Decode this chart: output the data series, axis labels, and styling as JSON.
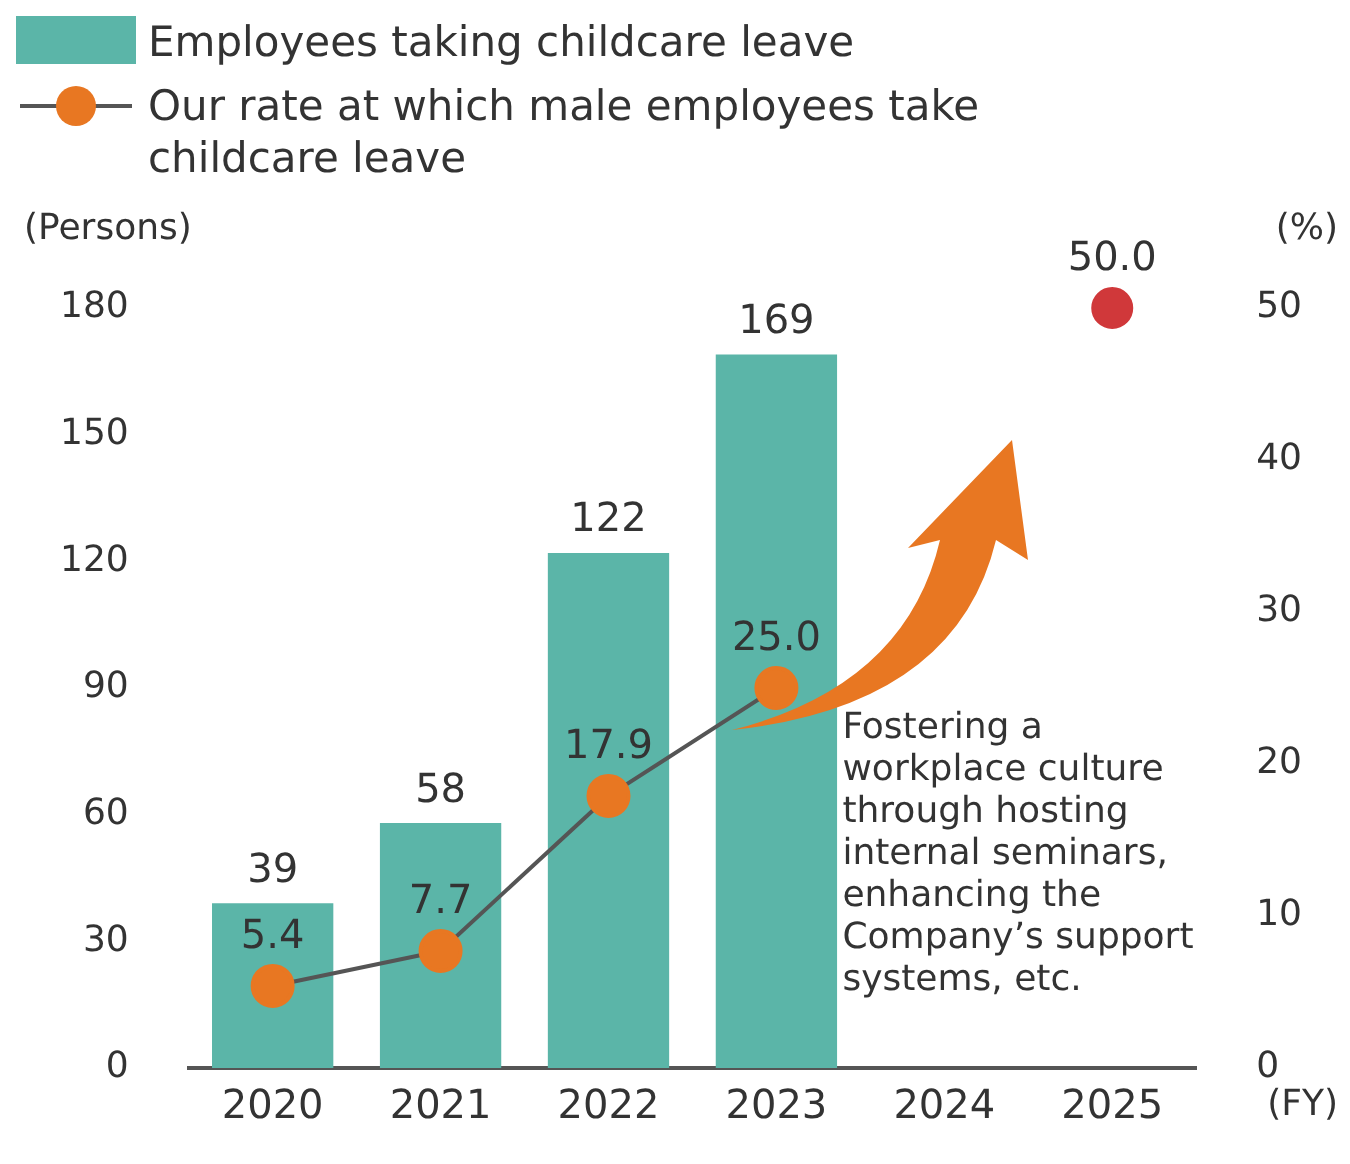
{
  "chart_data": {
    "type": "bar",
    "categories": [
      "2020",
      "2021",
      "2022",
      "2023",
      "2024",
      "2025"
    ],
    "series": [
      {
        "name": "Employees taking childcare leave",
        "color": "#5bb5a8",
        "values": [
          39,
          58,
          122,
          169,
          null,
          null
        ],
        "value_labels": [
          "39",
          "58",
          "122",
          "169",
          null,
          null
        ]
      },
      {
        "name": "Our rate at which male employees take childcare leave",
        "type": "line",
        "axis": "y2",
        "color": "#e87722",
        "marker": "circle",
        "values": [
          5.4,
          7.7,
          17.9,
          25.0,
          null,
          null
        ],
        "value_labels": [
          "5.4",
          "7.7",
          "17.9",
          "25.0",
          null,
          null
        ]
      },
      {
        "type": "scatter",
        "axis": "y2",
        "color": "#d0383a",
        "marker": "circle",
        "values": [
          null,
          null,
          null,
          null,
          null,
          50.0
        ],
        "value_labels": [
          null,
          null,
          null,
          null,
          null,
          "50.0"
        ]
      }
    ],
    "ylim": [
      0,
      180
    ],
    "yticks": [
      0,
      30,
      60,
      90,
      120,
      150,
      180
    ],
    "y2lim": [
      0,
      50
    ],
    "y2ticks": [
      0,
      10,
      20,
      30,
      40,
      50
    ],
    "ylabel": "(Persons)",
    "y2label": "(%)",
    "xlabel": "(FY)",
    "legend": "top left",
    "grid": false,
    "annotations": [
      "Fostering a workplace culture through hosting internal seminars, enhancing the Company’s support systems, etc."
    ]
  }
}
